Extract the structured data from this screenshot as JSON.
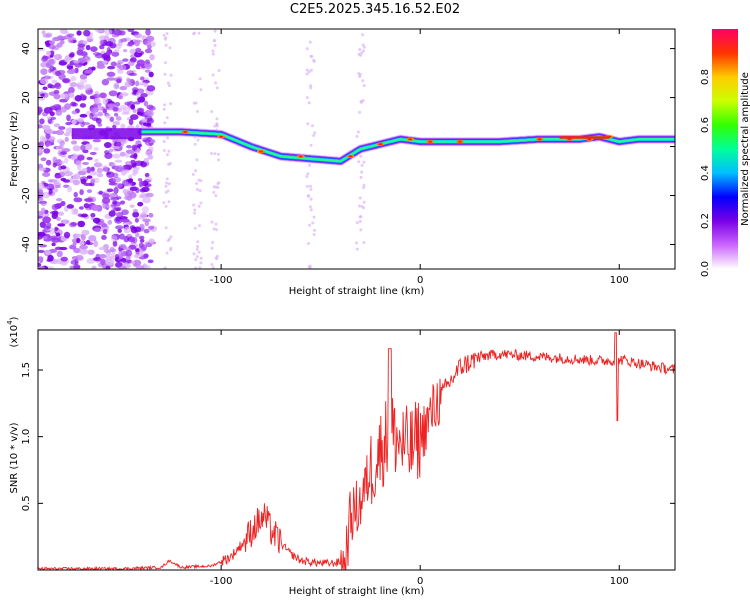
{
  "title": "C2E5.2025.345.16.52.E02",
  "chart_data": [
    {
      "type": "heatmap",
      "name": "spectrogram",
      "xlabel": "Height of straight line (km)",
      "ylabel": "Frequency (Hz)",
      "xlim": [
        -192,
        128
      ],
      "ylim": [
        -50,
        48
      ],
      "xticks": [
        -100,
        0,
        100
      ],
      "yticks": [
        -40,
        -20,
        0,
        20,
        40
      ],
      "colorbar": {
        "label": "Normalized spectral amplitude",
        "range": [
          0,
          1
        ],
        "ticks": [
          "0.0",
          "0.2",
          "0.4",
          "0.6",
          "0.8"
        ],
        "colors": [
          "#ffffff",
          "#cc66ff",
          "#7a00e6",
          "#0000ff",
          "#00bfff",
          "#00ff99",
          "#33ff00",
          "#ccff00",
          "#ffcc00",
          "#ff3300",
          "#ff0066"
        ]
      },
      "ridge": {
        "description": "dominant frequency track",
        "x": [
          -140,
          -120,
          -100,
          -85,
          -70,
          -55,
          -40,
          -30,
          -20,
          -10,
          0,
          10,
          20,
          40,
          60,
          80,
          90,
          100,
          110,
          128
        ],
        "y": [
          6,
          6,
          5,
          0,
          -4,
          -5,
          -6,
          -1,
          1,
          3,
          2,
          2,
          2,
          2,
          3,
          3,
          4,
          2,
          3,
          3
        ]
      }
    },
    {
      "type": "line",
      "name": "snr-trace",
      "xlabel": "Height of straight line (km)",
      "ylabel": "SNR (10 * v/v)",
      "scale_label": "(x10",
      "scale_exp": "4",
      "xlim": [
        -192,
        128
      ],
      "ylim": [
        0,
        1.8
      ],
      "xticks": [
        -100,
        0,
        100
      ],
      "yticks": [
        0.5,
        1.0,
        1.5
      ],
      "ytick_labels": [
        "0.5",
        "1.0",
        "1.5"
      ],
      "line_color": "#ee2222",
      "series": [
        {
          "name": "SNR",
          "x": [
            -192,
            -150,
            -130,
            -126,
            -120,
            -105,
            -95,
            -88,
            -82,
            -78,
            -75,
            -70,
            -65,
            -60,
            -55,
            -50,
            -45,
            -40,
            -38,
            -35,
            -30,
            -25,
            -20,
            -15,
            -10,
            -5,
            0,
            5,
            10,
            20,
            30,
            40,
            60,
            80,
            90,
            98,
            100,
            110,
            120,
            128
          ],
          "y": [
            0.01,
            0.01,
            0.02,
            0.07,
            0.02,
            0.03,
            0.1,
            0.22,
            0.35,
            0.4,
            0.3,
            0.2,
            0.12,
            0.07,
            0.06,
            0.05,
            0.05,
            0.06,
            0.02,
            0.4,
            0.5,
            0.75,
            0.9,
            1.05,
            0.95,
            0.9,
            1.0,
            1.15,
            1.3,
            1.52,
            1.6,
            1.62,
            1.6,
            1.58,
            1.57,
            1.57,
            1.58,
            1.55,
            1.52,
            1.5
          ]
        }
      ]
    }
  ]
}
